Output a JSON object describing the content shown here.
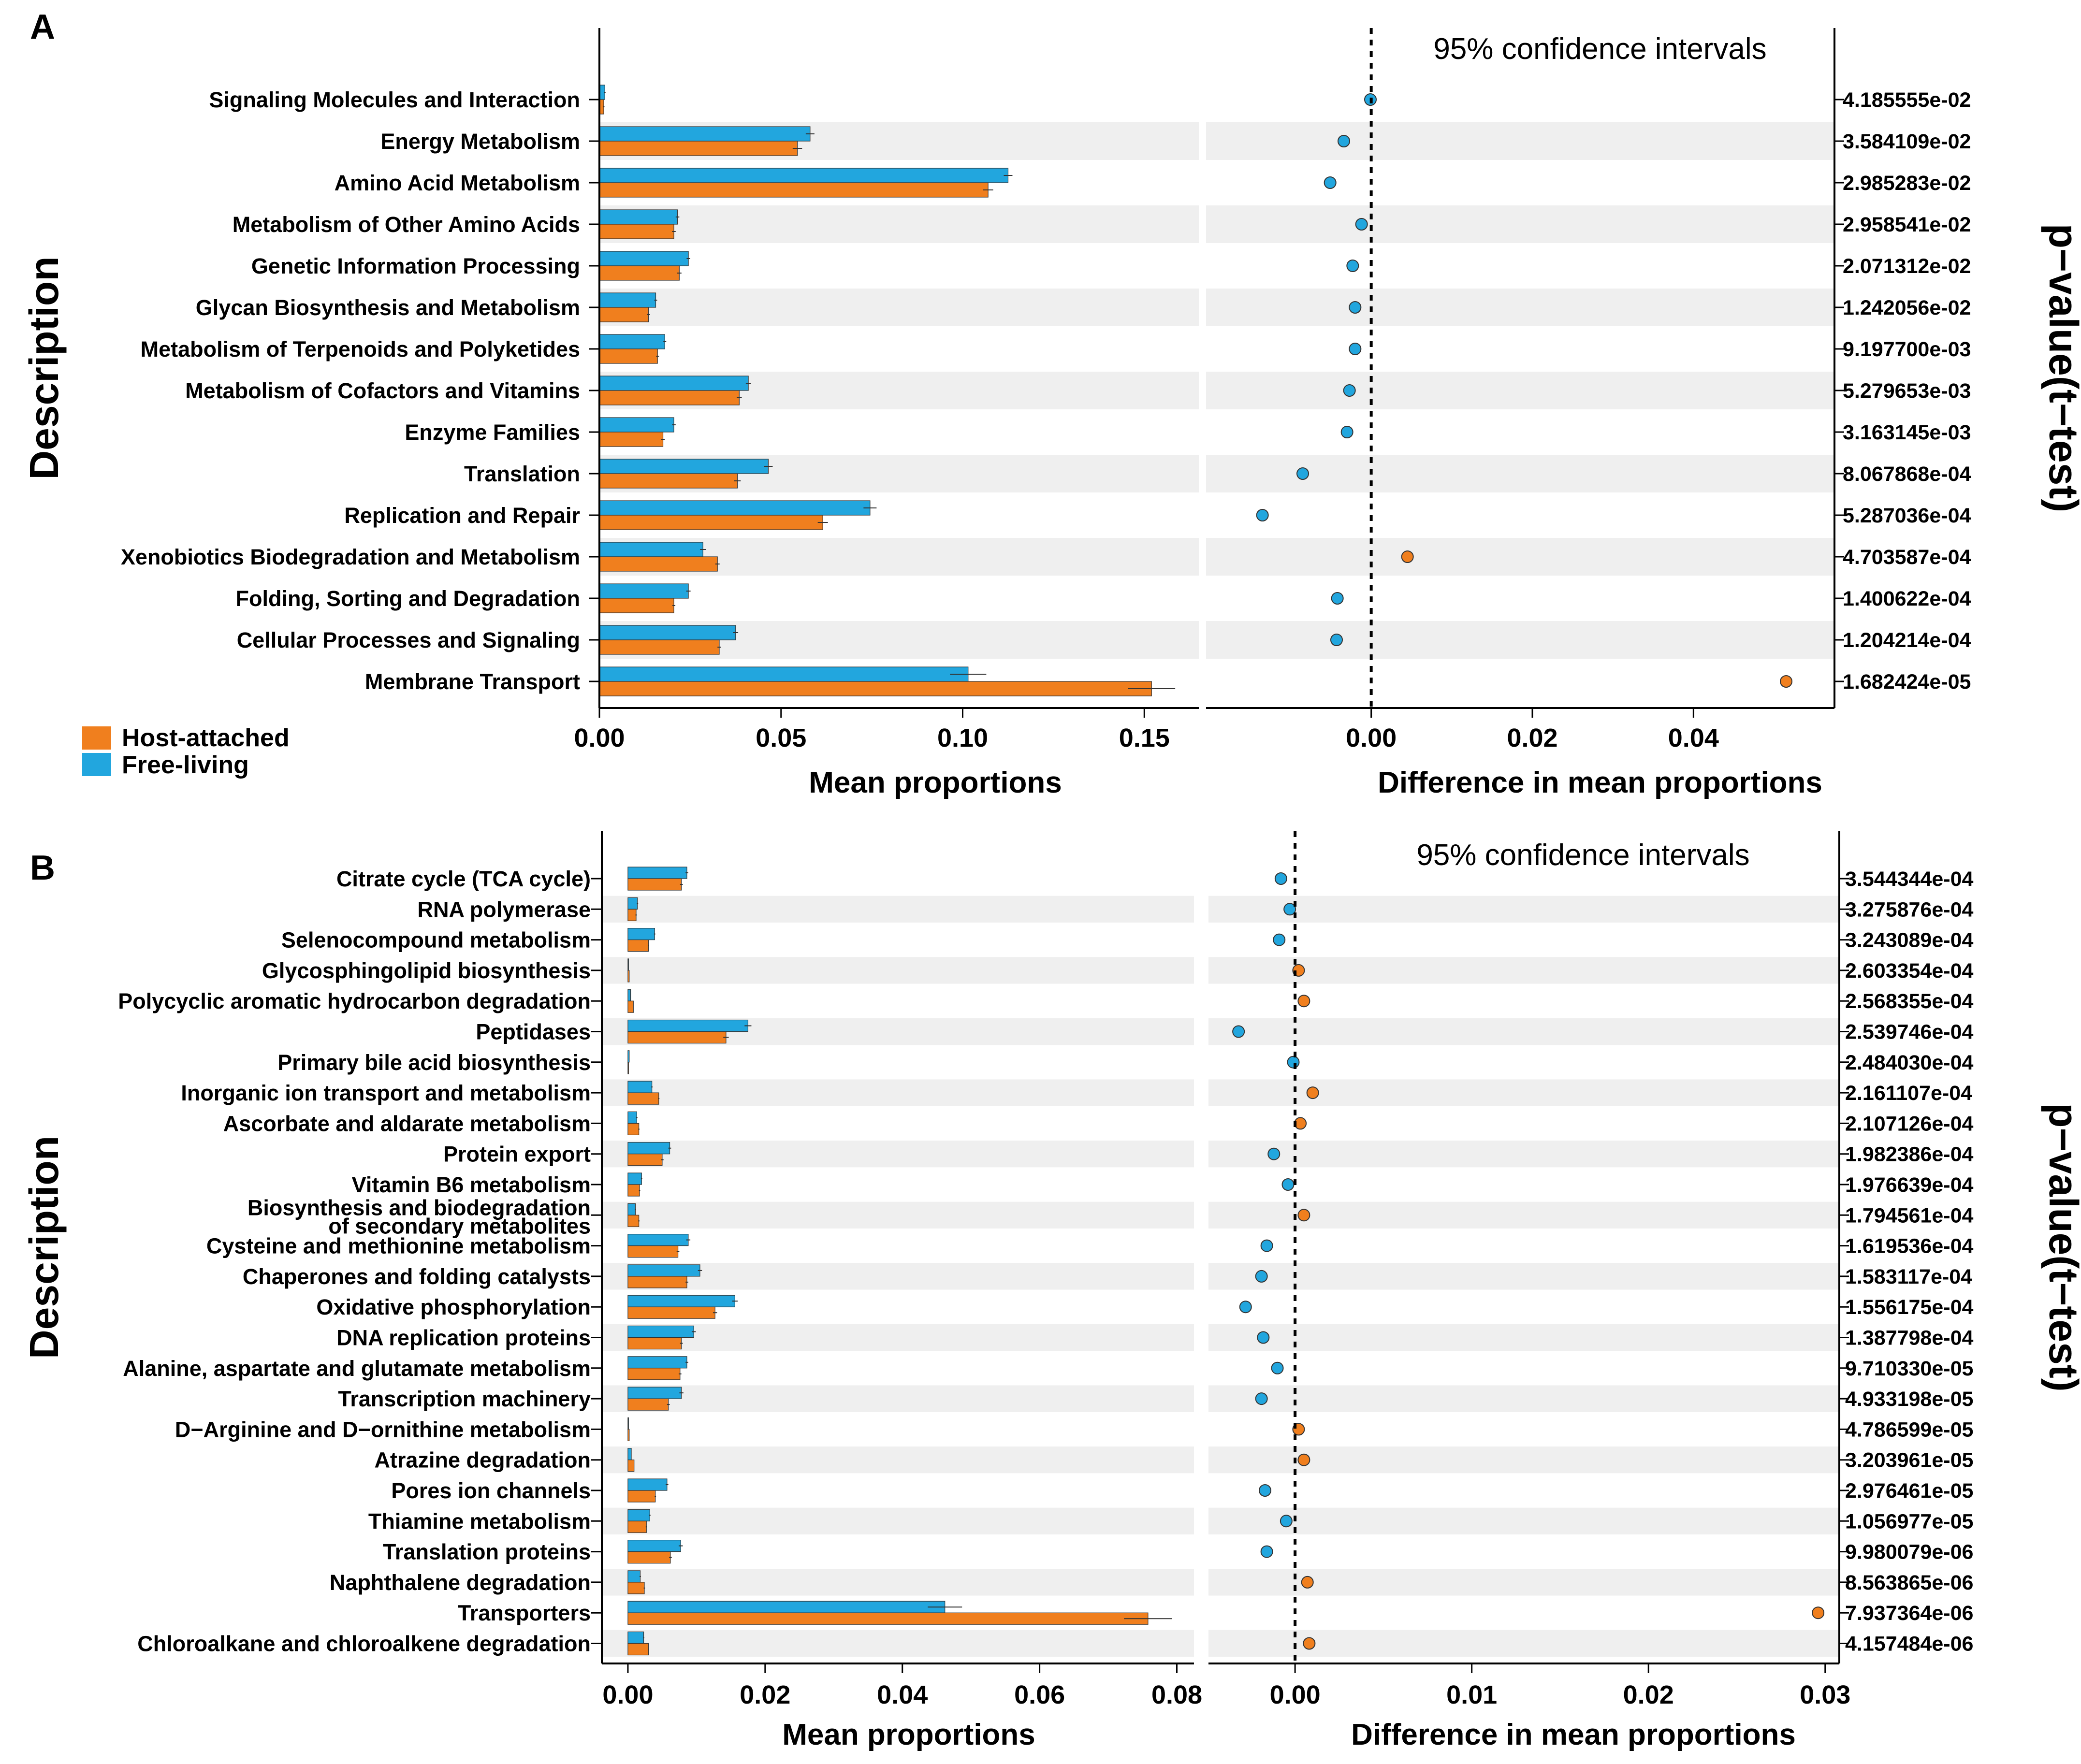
{
  "colors": {
    "host": "#F07F1E",
    "free": "#22A6DE",
    "band": "#EFEFEF"
  },
  "legend": {
    "host": "Host-attached",
    "free": "Free-living"
  },
  "chart_data": [
    {
      "panel": "A",
      "type": "bar",
      "ylabel": "Description",
      "pvalue_title": "p−value(t−test)",
      "ci_title": "95% confidence intervals",
      "left": {
        "xlabel": "Mean proportions",
        "xlim": [
          0,
          0.165
        ],
        "ticks": [
          0.0,
          0.05,
          0.1,
          0.15
        ],
        "tick_labels": [
          "0.00",
          "0.05",
          "0.10",
          "0.15"
        ]
      },
      "right": {
        "xlabel": "Difference in mean proportions",
        "xlim": [
          -0.0205,
          0.0575
        ],
        "ticks": [
          0.0,
          0.02,
          0.04
        ],
        "tick_labels": [
          "0.00",
          "0.02",
          "0.04"
        ]
      },
      "rows": [
        {
          "label": "Signaling Molecules and Interaction",
          "free": 0.0015,
          "host": 0.0012,
          "free_err": 0.0002,
          "host_err": 0.0002,
          "diff": -0.0001,
          "p": "4.185555e-02"
        },
        {
          "label": "Energy Metabolism",
          "free": 0.058,
          "host": 0.0545,
          "free_err": 0.0012,
          "host_err": 0.0013,
          "diff": -0.0034,
          "p": "3.584109e-02"
        },
        {
          "label": "Amino Acid Metabolism",
          "free": 0.1125,
          "host": 0.107,
          "free_err": 0.0012,
          "host_err": 0.0014,
          "diff": -0.0051,
          "p": "2.985283e-02"
        },
        {
          "label": "Metabolism of Other Amino Acids",
          "free": 0.0215,
          "host": 0.0205,
          "free_err": 0.0005,
          "host_err": 0.0005,
          "diff": -0.0012,
          "p": "2.958541e-02"
        },
        {
          "label": "Genetic Information Processing",
          "free": 0.0245,
          "host": 0.022,
          "free_err": 0.0005,
          "host_err": 0.0006,
          "diff": -0.0023,
          "p": "2.071312e-02"
        },
        {
          "label": "Glycan Biosynthesis and Metabolism",
          "free": 0.0155,
          "host": 0.0135,
          "free_err": 0.0004,
          "host_err": 0.0004,
          "diff": -0.002,
          "p": "1.242056e-02"
        },
        {
          "label": "Metabolism of Terpenoids and Polyketides",
          "free": 0.018,
          "host": 0.016,
          "free_err": 0.0004,
          "host_err": 0.0004,
          "diff": -0.002,
          "p": "9.197700e-03"
        },
        {
          "label": "Metabolism of Cofactors and Vitamins",
          "free": 0.041,
          "host": 0.0385,
          "free_err": 0.0007,
          "host_err": 0.0007,
          "diff": -0.0027,
          "p": "5.279653e-03"
        },
        {
          "label": "Enzyme Families",
          "free": 0.0205,
          "host": 0.0175,
          "free_err": 0.0005,
          "host_err": 0.0005,
          "diff": -0.003,
          "p": "3.163145e-03"
        },
        {
          "label": "Translation",
          "free": 0.0465,
          "host": 0.038,
          "free_err": 0.0012,
          "host_err": 0.0009,
          "diff": -0.0085,
          "p": "8.067868e-04"
        },
        {
          "label": "Replication and Repair",
          "free": 0.0745,
          "host": 0.0615,
          "free_err": 0.0018,
          "host_err": 0.0014,
          "diff": -0.0135,
          "p": "5.287036e-04"
        },
        {
          "label": "Xenobiotics Biodegradation and Metabolism",
          "free": 0.0285,
          "host": 0.0325,
          "free_err": 0.0008,
          "host_err": 0.0006,
          "diff": 0.0045,
          "p": "4.703587e-04"
        },
        {
          "label": "Folding, Sorting and Degradation",
          "free": 0.0245,
          "host": 0.0205,
          "free_err": 0.0006,
          "host_err": 0.0004,
          "diff": -0.0042,
          "p": "1.400622e-04"
        },
        {
          "label": "Cellular Processes and Signaling",
          "free": 0.0375,
          "host": 0.033,
          "free_err": 0.0007,
          "host_err": 0.0005,
          "diff": -0.0043,
          "p": "1.204214e-04"
        },
        {
          "label": "Membrane Transport",
          "free": 0.1015,
          "host": 0.152,
          "free_err": 0.005,
          "host_err": 0.0065,
          "diff": 0.0515,
          "p": "1.682424e-05"
        }
      ]
    },
    {
      "panel": "B",
      "type": "bar",
      "ylabel": "Description",
      "pvalue_title": "p−value(t−test)",
      "ci_title": "95% confidence intervals",
      "left": {
        "xlabel": "Mean proportions",
        "xlim": [
          -0.0038,
          0.0825
        ],
        "ticks": [
          0.0,
          0.02,
          0.04,
          0.06,
          0.08
        ],
        "tick_labels": [
          "0.00",
          "0.02",
          "0.04",
          "0.06",
          "0.08"
        ]
      },
      "right": {
        "xlabel": "Difference in mean proportions",
        "xlim": [
          -0.0049,
          0.0308
        ],
        "ticks": [
          0.0,
          0.01,
          0.02,
          0.03
        ],
        "tick_labels": [
          "0.00",
          "0.01",
          "0.02",
          "0.03"
        ]
      },
      "rows": [
        {
          "label": "Citrate cycle (TCA cycle)",
          "free": 0.0086,
          "host": 0.0078,
          "free_err": 0.0002,
          "host_err": 0.0002,
          "diff": -0.0008,
          "p": "3.544344e-04"
        },
        {
          "label": "RNA polymerase",
          "free": 0.0014,
          "host": 0.0012,
          "free_err": 0.0001,
          "host_err": 0.0001,
          "diff": -0.0003,
          "p": "3.275876e-04"
        },
        {
          "label": "Selenocompound metabolism",
          "free": 0.0039,
          "host": 0.003,
          "free_err": 0.0001,
          "host_err": 0.0001,
          "diff": -0.0009,
          "p": "3.243089e-04"
        },
        {
          "label": "Glycosphingolipid biosynthesis",
          "free": 0.0001,
          "host": 0.0002,
          "free_err": 0.0,
          "host_err": 0.0,
          "diff": 0.0002,
          "p": "2.603354e-04"
        },
        {
          "label": "Polycyclic aromatic hydrocarbon degradation",
          "free": 0.0004,
          "host": 0.0008,
          "free_err": 0.0,
          "host_err": 0.0,
          "diff": 0.0005,
          "p": "2.568355e-04"
        },
        {
          "label": "Peptidases",
          "free": 0.0175,
          "host": 0.0143,
          "free_err": 0.0005,
          "host_err": 0.0004,
          "diff": -0.0032,
          "p": "2.539746e-04"
        },
        {
          "label": "Primary bile acid biosynthesis",
          "free": 0.0002,
          "host": 0.0001,
          "free_err": 0.0,
          "host_err": 0.0,
          "diff": -0.0001,
          "p": "2.484030e-04"
        },
        {
          "label": "Inorganic ion transport and metabolism",
          "free": 0.0035,
          "host": 0.0045,
          "free_err": 0.0001,
          "host_err": 0.0001,
          "diff": 0.001,
          "p": "2.161107e-04"
        },
        {
          "label": "Ascorbate and aldarate metabolism",
          "free": 0.0013,
          "host": 0.0016,
          "free_err": 0.0001,
          "host_err": 0.0001,
          "diff": 0.0003,
          "p": "2.107126e-04"
        },
        {
          "label": "Protein export",
          "free": 0.0061,
          "host": 0.005,
          "free_err": 0.0002,
          "host_err": 0.0002,
          "diff": -0.0012,
          "p": "1.982386e-04"
        },
        {
          "label": "Vitamin B6 metabolism",
          "free": 0.002,
          "host": 0.0017,
          "free_err": 0.0001,
          "host_err": 0.0001,
          "diff": -0.0004,
          "p": "1.976639e-04"
        },
        {
          "label": "Biosynthesis and biodegradation",
          "label2": "of secondary metabolites",
          "free": 0.0011,
          "host": 0.0016,
          "free_err": 0.0001,
          "host_err": 0.0001,
          "diff": 0.0005,
          "p": "1.794561e-04"
        },
        {
          "label": "Cysteine and methionine metabolism",
          "free": 0.0088,
          "host": 0.0073,
          "free_err": 0.0003,
          "host_err": 0.0002,
          "diff": -0.0016,
          "p": "1.619536e-04"
        },
        {
          "label": "Chaperones and folding catalysts",
          "free": 0.0105,
          "host": 0.0086,
          "free_err": 0.0003,
          "host_err": 0.0002,
          "diff": -0.0019,
          "p": "1.583117e-04"
        },
        {
          "label": "Oxidative phosphorylation",
          "free": 0.0156,
          "host": 0.0127,
          "free_err": 0.0004,
          "host_err": 0.0003,
          "diff": -0.0028,
          "p": "1.556175e-04"
        },
        {
          "label": "DNA replication proteins",
          "free": 0.0096,
          "host": 0.0078,
          "free_err": 0.0003,
          "host_err": 0.0002,
          "diff": -0.0018,
          "p": "1.387798e-04"
        },
        {
          "label": "Alanine, aspartate and glutamate metabolism",
          "free": 0.0086,
          "host": 0.0076,
          "free_err": 0.0002,
          "host_err": 0.0002,
          "diff": -0.001,
          "p": "9.710330e-05"
        },
        {
          "label": "Transcription machinery",
          "free": 0.0078,
          "host": 0.0059,
          "free_err": 0.0003,
          "host_err": 0.0002,
          "diff": -0.0019,
          "p": "4.933198e-05"
        },
        {
          "label": "D−Arginine and D−ornithine metabolism",
          "free": 0.0001,
          "host": 0.0002,
          "free_err": 0.0,
          "host_err": 0.0,
          "diff": 0.0002,
          "p": "4.786599e-05"
        },
        {
          "label": "Atrazine degradation",
          "free": 0.0005,
          "host": 0.0009,
          "free_err": 0.0,
          "host_err": 0.0,
          "diff": 0.0005,
          "p": "3.203961e-05"
        },
        {
          "label": "Pores ion channels",
          "free": 0.0057,
          "host": 0.004,
          "free_err": 0.0002,
          "host_err": 0.0001,
          "diff": -0.0017,
          "p": "2.976461e-05"
        },
        {
          "label": "Thiamine metabolism",
          "free": 0.0032,
          "host": 0.0027,
          "free_err": 0.0001,
          "host_err": 0.0001,
          "diff": -0.0005,
          "p": "1.056977e-05"
        },
        {
          "label": "Translation proteins",
          "free": 0.0077,
          "host": 0.0062,
          "free_err": 0.0003,
          "host_err": 0.0002,
          "diff": -0.0016,
          "p": "9.980079e-06"
        },
        {
          "label": "Naphthalene degradation",
          "free": 0.0018,
          "host": 0.0024,
          "free_err": 0.0001,
          "host_err": 0.0001,
          "diff": 0.0007,
          "p": "8.563865e-06"
        },
        {
          "label": "Transporters",
          "free": 0.0462,
          "host": 0.0758,
          "free_err": 0.0025,
          "host_err": 0.0035,
          "diff": 0.0296,
          "p": "7.937364e-06"
        },
        {
          "label": "Chloroalkane and chloroalkene degradation",
          "free": 0.0023,
          "host": 0.003,
          "free_err": 0.0001,
          "host_err": 0.0001,
          "diff": 0.0008,
          "p": "4.157484e-06"
        }
      ]
    }
  ]
}
